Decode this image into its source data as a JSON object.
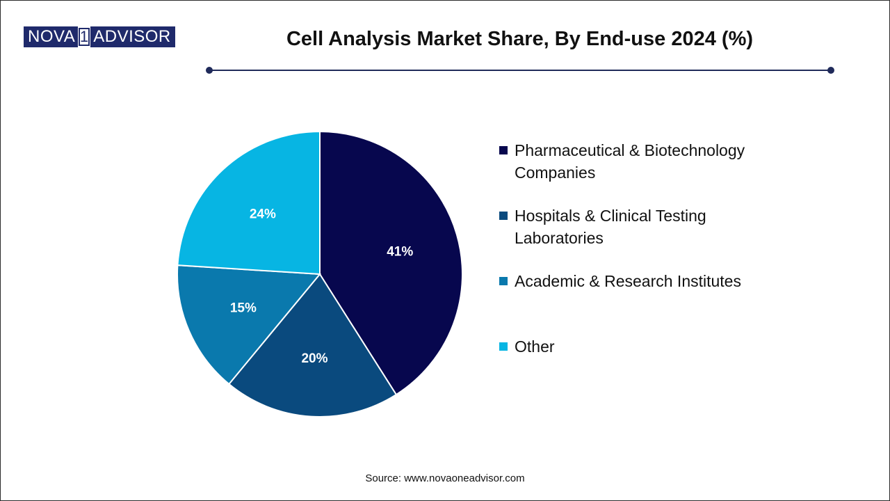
{
  "logo": {
    "part1": "NOVA",
    "part2": "1",
    "part3": "ADVISOR"
  },
  "header": {
    "title": "Cell Analysis Market Share, By End-use 2024 (%)"
  },
  "colors": {
    "brand": "#1f2a6b",
    "rule": "#1f2a5a"
  },
  "chart_data": {
    "type": "pie",
    "title": "Cell Analysis Market Share, By End-use 2024 (%)",
    "categories": [
      "Pharmaceutical & Biotechnology Companies",
      "Hospitals & Clinical Testing Laboratories",
      "Academic & Research Institutes",
      "Other"
    ],
    "values": [
      41,
      20,
      15,
      24
    ],
    "labels": [
      "41%",
      "20%",
      "15%",
      "24%"
    ],
    "colors": [
      "#07074e",
      "#0a4a7e",
      "#0a79ad",
      "#07b5e3"
    ],
    "legend_placement": "right",
    "start": "top, clockwise"
  },
  "legend": {
    "items": [
      {
        "line1": "Pharmaceutical & Biotechnology",
        "line2": "Companies",
        "color": "#07074e"
      },
      {
        "line1": "Hospitals & Clinical Testing",
        "line2": "Laboratories",
        "color": "#0a4a7e"
      },
      {
        "line1": "Academic & Research Institutes",
        "line2": "",
        "color": "#0a79ad"
      },
      {
        "line1": "Other",
        "line2": "",
        "color": "#07b5e3"
      }
    ]
  },
  "footer": {
    "source": "Source: www.novaoneadvisor.com"
  }
}
